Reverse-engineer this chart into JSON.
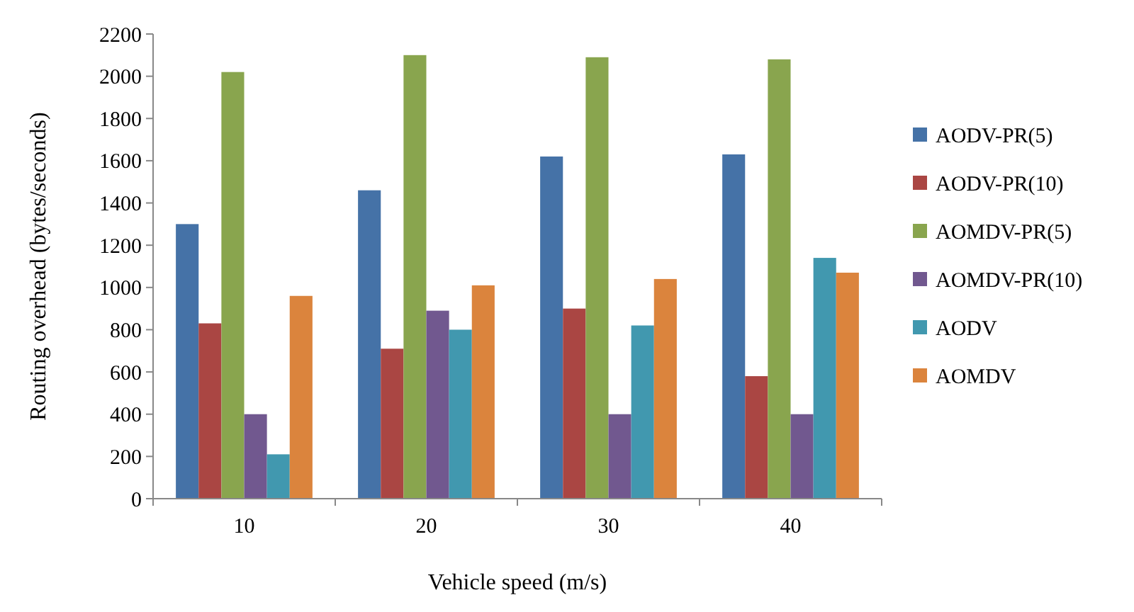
{
  "chart_data": {
    "type": "bar",
    "xlabel": "Vehicle speed (m/s)",
    "ylabel": "Routing overhead (bytes/seconds)",
    "categories": [
      "10",
      "20",
      "30",
      "40"
    ],
    "ylim": [
      0,
      2200
    ],
    "yticks": [
      0,
      200,
      400,
      600,
      800,
      1000,
      1200,
      1400,
      1600,
      1800,
      2000,
      2200
    ],
    "grid": false,
    "legend": "right",
    "series": [
      {
        "name": "AODV-PR(5)",
        "color": "#4572a7",
        "values": [
          1300,
          1460,
          1620,
          1630
        ]
      },
      {
        "name": "AODV-PR(10)",
        "color": "#aa4643",
        "values": [
          830,
          710,
          900,
          580
        ]
      },
      {
        "name": "AOMDV-PR(5)",
        "color": "#89a54e",
        "values": [
          2020,
          2100,
          2090,
          2080
        ]
      },
      {
        "name": "AOMDV-PR(10)",
        "color": "#71588f",
        "values": [
          400,
          890,
          400,
          400
        ]
      },
      {
        "name": "AODV",
        "color": "#4198af",
        "values": [
          210,
          800,
          820,
          1140
        ]
      },
      {
        "name": "AOMDV",
        "color": "#db843d",
        "values": [
          960,
          1010,
          1040,
          1070
        ]
      }
    ]
  }
}
